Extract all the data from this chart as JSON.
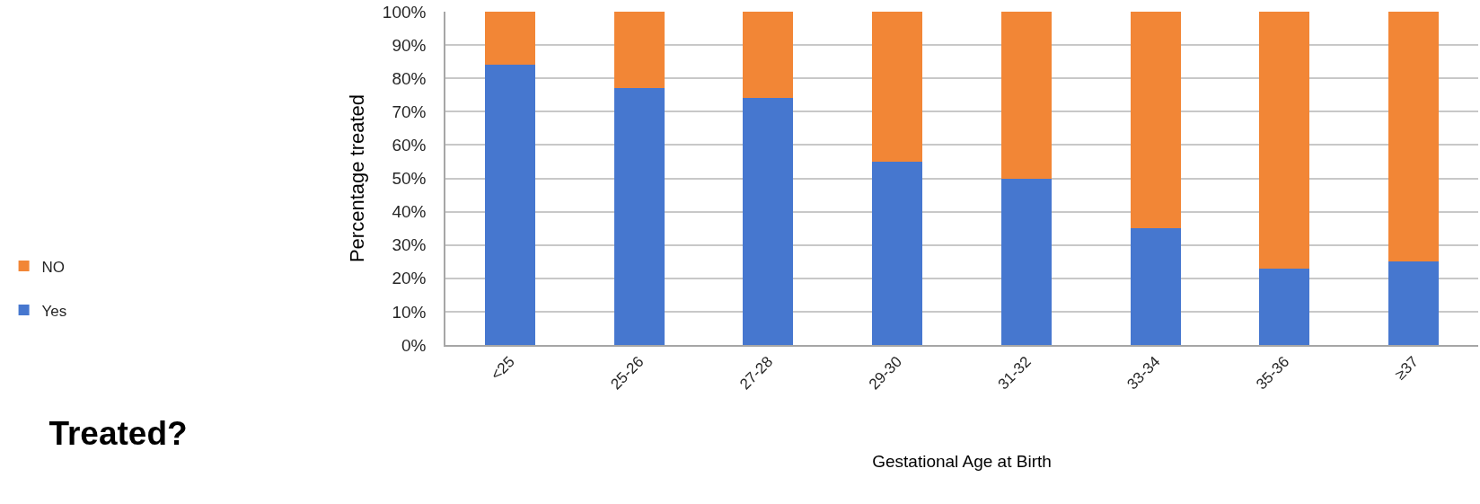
{
  "chart_data": {
    "type": "bar",
    "title": "Treated?",
    "xlabel": "Gestational Age at Birth",
    "ylabel": "Percentage treated",
    "categories": [
      "<25",
      "25-26",
      "27-28",
      "29-30",
      "31-32",
      "33-34",
      "35-36",
      "≥37"
    ],
    "series": [
      {
        "name": "Yes",
        "color": "#4677cf",
        "values": [
          84,
          77,
          74,
          55,
          50,
          35,
          23,
          25
        ]
      },
      {
        "name": "NO",
        "color": "#f28636",
        "values": [
          16,
          23,
          26,
          45,
          50,
          65,
          77,
          75
        ]
      }
    ],
    "stacked": true,
    "ylim": [
      0,
      100
    ],
    "yticks": [
      {
        "value": 0,
        "label": "0%"
      },
      {
        "value": 10,
        "label": "10%"
      },
      {
        "value": 20,
        "label": "20%"
      },
      {
        "value": 30,
        "label": "30%"
      },
      {
        "value": 40,
        "label": "40%"
      },
      {
        "value": 50,
        "label": "50%"
      },
      {
        "value": 60,
        "label": "60%"
      },
      {
        "value": 70,
        "label": "70%"
      },
      {
        "value": 80,
        "label": "80%"
      },
      {
        "value": 90,
        "label": "90%"
      },
      {
        "value": 100,
        "label": "100%"
      }
    ],
    "grid": "y",
    "legend": "left"
  }
}
